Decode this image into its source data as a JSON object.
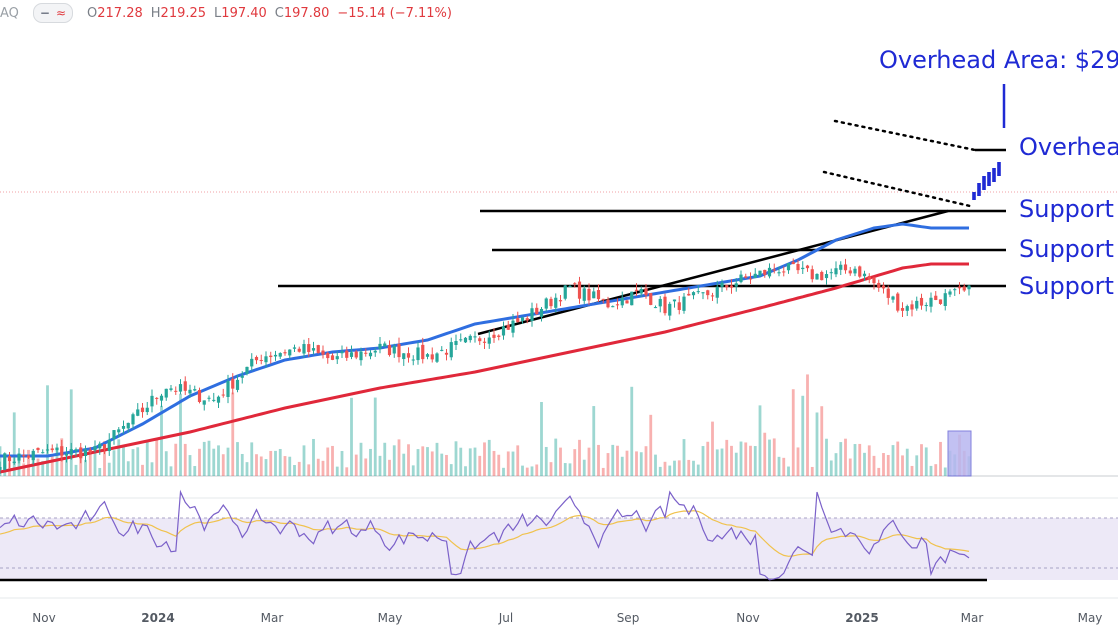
{
  "header": {
    "symbol": "AQ",
    "ohlc": [
      {
        "k": "O",
        "v": "217.28"
      },
      {
        "k": "H",
        "v": "219.25"
      },
      {
        "k": "L",
        "v": "197.40"
      },
      {
        "k": "C",
        "v": "197.80"
      }
    ],
    "change": "−15.14 (−7.11%)",
    "pill_icons": [
      "minus-icon",
      "wave-icon"
    ],
    "pill_symbols": [
      "−",
      "≈"
    ]
  },
  "colors": {
    "up": "#26a69a",
    "down": "#ef5350",
    "ma50": "#2f6ee0",
    "ma200": "#e0283a",
    "rsi": "#7b61c9",
    "rsi_ma": "#f0c24d",
    "annotation": "#1f2ad4",
    "rsi_band": "#ede9f7"
  },
  "chart_data": {
    "type": "candlestick",
    "title": "",
    "x_axis": {
      "labels": [
        "Nov",
        "2024",
        "Mar",
        "May",
        "Jul",
        "Sep",
        "Nov",
        "2025",
        "Mar",
        "May"
      ],
      "bold": [
        "2024",
        "2025"
      ],
      "range": [
        "Oct 2023",
        "May 2025"
      ]
    },
    "y_range_visible": [
      120,
      300
    ],
    "series": {
      "price_trend": {
        "t": [
          0,
          10,
          20,
          28,
          35,
          45,
          55,
          63,
          70,
          80,
          90,
          100,
          110,
          120,
          128,
          135,
          140,
          148,
          156,
          164,
          172,
          180,
          185,
          190,
          196,
          204
        ],
        "v": [
          120,
          124,
          124,
          140,
          157,
          150,
          172,
          176,
          170,
          176,
          172,
          180,
          190,
          206,
          198,
          204,
          196,
          202,
          210,
          216,
          212,
          216,
          206,
          196,
          200,
          204
        ]
      },
      "ma_50": {
        "t": [
          0,
          10,
          20,
          30,
          40,
          50,
          60,
          70,
          80,
          90,
          100,
          110,
          120,
          130,
          140,
          150,
          160,
          168,
          176,
          184,
          190,
          196
        ],
        "v": [
          122,
          122,
          126,
          138,
          152,
          162,
          170,
          174,
          176,
          180,
          188,
          192,
          196,
          200,
          204,
          208,
          212,
          220,
          230,
          236,
          238,
          236
        ]
      },
      "ma_200": {
        "t": [
          0,
          20,
          40,
          60,
          80,
          100,
          120,
          140,
          160,
          176,
          190,
          196
        ],
        "v": [
          114,
          124,
          134,
          146,
          156,
          164,
          174,
          184,
          196,
          206,
          216,
          218
        ]
      },
      "rsi_14": {
        "range": [
          30,
          70
        ],
        "reference_lines": [
          70,
          30
        ]
      },
      "volume": {
        "style": "histogram",
        "highlight_last_bars": true
      }
    },
    "annotations": {
      "title": "Overhead Area: $29",
      "levels": [
        {
          "label": "Overhea",
          "kind": "overhead"
        },
        {
          "label": "Support",
          "kind": "support"
        },
        {
          "label": "Support",
          "kind": "support"
        },
        {
          "label": "Support",
          "kind": "support"
        }
      ],
      "patterns": [
        "descending-channel",
        "rising-trendline",
        "horizontal-support"
      ]
    }
  }
}
